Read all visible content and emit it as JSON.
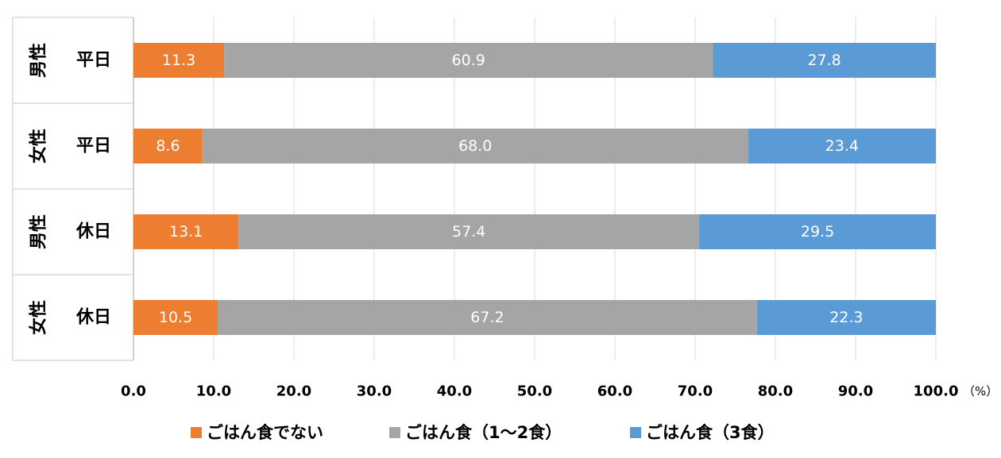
{
  "chart_data": {
    "type": "bar",
    "orientation": "horizontal",
    "stacked": true,
    "categories": [
      {
        "group": "男性",
        "day": "平日"
      },
      {
        "group": "女性",
        "day": "平日"
      },
      {
        "group": "男性",
        "day": "休日"
      },
      {
        "group": "女性",
        "day": "休日"
      }
    ],
    "series": [
      {
        "name": "ごはん食でない",
        "color": "#ED7D31",
        "values": [
          11.3,
          8.6,
          13.1,
          10.5
        ]
      },
      {
        "name": "ごはん食（1〜2食）",
        "color": "#A5A5A5",
        "values": [
          60.9,
          68.0,
          57.4,
          67.2
        ]
      },
      {
        "name": "ごはん食（3食）",
        "color": "#5B9BD5",
        "values": [
          27.8,
          23.4,
          29.5,
          22.3
        ]
      }
    ],
    "xlim": [
      0,
      100
    ],
    "x_ticks": [
      "0.0",
      "10.0",
      "20.0",
      "30.0",
      "40.0",
      "50.0",
      "60.0",
      "70.0",
      "80.0",
      "90.0",
      "100.0"
    ],
    "x_unit": "（%）",
    "title": "",
    "xlabel": "",
    "ylabel": "",
    "grid": true,
    "legend_position": "bottom",
    "data_labels": true
  }
}
